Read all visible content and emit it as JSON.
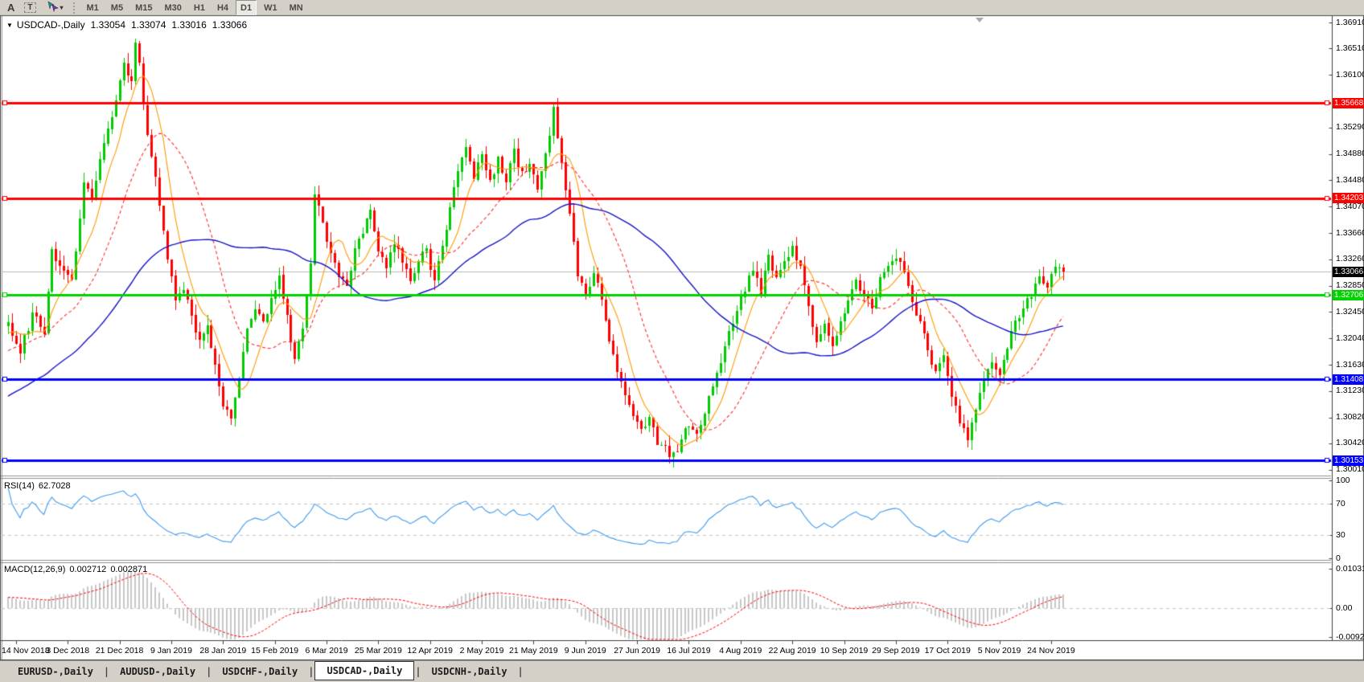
{
  "toolbar": {
    "tool_a": "A",
    "tool_t": "T",
    "timeframes": [
      "M1",
      "M5",
      "M15",
      "M30",
      "H1",
      "H4",
      "D1",
      "W1",
      "MN"
    ],
    "active_timeframe": "D1"
  },
  "chart": {
    "symbol_label": "USDCAD-,Daily",
    "ohlc": {
      "open": "1.33054",
      "high": "1.33074",
      "low": "1.33016",
      "close": "1.33066"
    }
  },
  "price_axis": {
    "tick_labels": [
      "1.36910",
      "1.36510",
      "1.36100",
      "1.35290",
      "1.34880",
      "1.34480",
      "1.34070",
      "1.33660",
      "1.33260",
      "1.32850",
      "1.32450",
      "1.32040",
      "1.31630",
      "1.31230",
      "1.30820",
      "1.30420",
      "1.30010"
    ]
  },
  "axis_badges": [
    {
      "text": "1.35668",
      "price": 1.35668,
      "bg": "#ff0000",
      "fg": "#ffffff"
    },
    {
      "text": "1.34203",
      "price": 1.34203,
      "bg": "#ff0000",
      "fg": "#ffffff"
    },
    {
      "text": "1.33066",
      "price": 1.33066,
      "bg": "#000000",
      "fg": "#ffffff"
    },
    {
      "text": "1.32706",
      "price": 1.32706,
      "bg": "#00d300",
      "fg": "#ffffff"
    },
    {
      "text": "1.31408",
      "price": 1.31408,
      "bg": "#0000ff",
      "fg": "#ffffff"
    },
    {
      "text": "1.30153",
      "price": 1.30153,
      "bg": "#0000ff",
      "fg": "#ffffff"
    }
  ],
  "rsi_panel": {
    "label": "RSI(14)",
    "value": "62.7028",
    "axis_labels": [
      "100",
      "70",
      "30",
      "0"
    ]
  },
  "macd_panel": {
    "label": "MACD(12,26,9)",
    "value_macd": "0.002712",
    "value_signal": "0.002871",
    "axis_labels": [
      "0.010311",
      "0.00",
      "-0.00920"
    ]
  },
  "date_axis": [
    "14 Nov 2018",
    "3 Dec 2018",
    "21 Dec 2018",
    "9 Jan 2019",
    "28 Jan 2019",
    "15 Feb 2019",
    "6 Mar 2019",
    "25 Mar 2019",
    "12 Apr 2019",
    "2 May 2019",
    "21 May 2019",
    "9 Jun 2019",
    "27 Jun 2019",
    "16 Jul 2019",
    "4 Aug 2019",
    "22 Aug 2019",
    "10 Sep 2019",
    "29 Sep 2019",
    "17 Oct 2019",
    "5 Nov 2019",
    "24 Nov 2019"
  ],
  "tabs": {
    "items": [
      "EURUSD-,Daily",
      "AUDUSD-,Daily",
      "USDCHF-,Daily",
      "USDCAD-,Daily",
      "USDCNH-,Daily"
    ],
    "active": "USDCAD-,Daily"
  },
  "chart_data": {
    "type": "candlestick",
    "symbol": "USDCAD",
    "timeframe": "Daily",
    "last_ohlc": {
      "open": 1.33054,
      "high": 1.33074,
      "low": 1.33016,
      "close": 1.33066
    },
    "bars_total": 266,
    "x_tick_dates": [
      "14 Nov 2018",
      "3 Dec 2018",
      "21 Dec 2018",
      "9 Jan 2019",
      "28 Jan 2019",
      "15 Feb 2019",
      "6 Mar 2019",
      "25 Mar 2019",
      "12 Apr 2019",
      "2 May 2019",
      "21 May 2019",
      "9 Jun 2019",
      "27 Jun 2019",
      "16 Jul 2019",
      "4 Aug 2019",
      "22 Aug 2019",
      "10 Sep 2019",
      "29 Sep 2019",
      "17 Oct 2019",
      "5 Nov 2019",
      "24 Nov 2019"
    ],
    "x_tick_first_bar": 2,
    "x_tick_bar_step": 13,
    "y_axis_ticks": [
      1.3691,
      1.3651,
      1.361,
      1.3529,
      1.3488,
      1.3448,
      1.3407,
      1.3366,
      1.3326,
      1.3285,
      1.3245,
      1.3204,
      1.3163,
      1.3123,
      1.3082,
      1.3042,
      1.3001
    ],
    "close_waypoints": [
      [
        0,
        1.3225
      ],
      [
        3,
        1.3185
      ],
      [
        6,
        1.324
      ],
      [
        9,
        1.3215
      ],
      [
        11,
        1.334
      ],
      [
        14,
        1.331
      ],
      [
        16,
        1.329
      ],
      [
        19,
        1.3445
      ],
      [
        21,
        1.3415
      ],
      [
        24,
        1.3505
      ],
      [
        27,
        1.357
      ],
      [
        29,
        1.3625
      ],
      [
        31,
        1.36
      ],
      [
        32,
        1.3655
      ],
      [
        33,
        1.363
      ],
      [
        34,
        1.356
      ],
      [
        36,
        1.3485
      ],
      [
        38,
        1.341
      ],
      [
        40,
        1.333
      ],
      [
        42,
        1.326
      ],
      [
        44,
        1.328
      ],
      [
        46,
        1.324
      ],
      [
        48,
        1.3195
      ],
      [
        50,
        1.3225
      ],
      [
        52,
        1.316
      ],
      [
        54,
        1.31
      ],
      [
        56,
        1.308
      ],
      [
        58,
        1.314
      ],
      [
        60,
        1.322
      ],
      [
        62,
        1.325
      ],
      [
        64,
        1.3225
      ],
      [
        66,
        1.3265
      ],
      [
        68,
        1.33
      ],
      [
        70,
        1.3235
      ],
      [
        72,
        1.317
      ],
      [
        74,
        1.322
      ],
      [
        76,
        1.332
      ],
      [
        77,
        1.343
      ],
      [
        79,
        1.338
      ],
      [
        81,
        1.3335
      ],
      [
        83,
        1.33
      ],
      [
        85,
        1.329
      ],
      [
        87,
        1.334
      ],
      [
        89,
        1.337
      ],
      [
        91,
        1.3405
      ],
      [
        93,
        1.334
      ],
      [
        95,
        1.331
      ],
      [
        97,
        1.3355
      ],
      [
        99,
        1.332
      ],
      [
        101,
        1.329
      ],
      [
        103,
        1.3325
      ],
      [
        105,
        1.334
      ],
      [
        107,
        1.329
      ],
      [
        109,
        1.3345
      ],
      [
        111,
        1.3405
      ],
      [
        113,
        1.3465
      ],
      [
        115,
        1.35
      ],
      [
        117,
        1.3455
      ],
      [
        119,
        1.3485
      ],
      [
        121,
        1.3445
      ],
      [
        123,
        1.348
      ],
      [
        125,
        1.3445
      ],
      [
        127,
        1.349
      ],
      [
        129,
        1.3455
      ],
      [
        131,
        1.3475
      ],
      [
        133,
        1.3435
      ],
      [
        135,
        1.3485
      ],
      [
        137,
        1.3555
      ],
      [
        139,
        1.348
      ],
      [
        141,
        1.3395
      ],
      [
        143,
        1.33
      ],
      [
        145,
        1.327
      ],
      [
        147,
        1.3305
      ],
      [
        149,
        1.3265
      ],
      [
        151,
        1.3205
      ],
      [
        153,
        1.3155
      ],
      [
        155,
        1.3115
      ],
      [
        157,
        1.309
      ],
      [
        159,
        1.3062
      ],
      [
        161,
        1.3082
      ],
      [
        163,
        1.3045
      ],
      [
        165,
        1.3032
      ],
      [
        167,
        1.3022
      ],
      [
        169,
        1.3048
      ],
      [
        171,
        1.3072
      ],
      [
        173,
        1.3058
      ],
      [
        175,
        1.3092
      ],
      [
        177,
        1.3132
      ],
      [
        179,
        1.3172
      ],
      [
        181,
        1.3212
      ],
      [
        183,
        1.3242
      ],
      [
        185,
        1.3282
      ],
      [
        187,
        1.3312
      ],
      [
        189,
        1.3272
      ],
      [
        191,
        1.3332
      ],
      [
        193,
        1.3292
      ],
      [
        195,
        1.3322
      ],
      [
        197,
        1.3342
      ],
      [
        199,
        1.3312
      ],
      [
        201,
        1.3252
      ],
      [
        203,
        1.3198
      ],
      [
        205,
        1.3225
      ],
      [
        207,
        1.3192
      ],
      [
        209,
        1.3235
      ],
      [
        211,
        1.3262
      ],
      [
        213,
        1.3295
      ],
      [
        215,
        1.3272
      ],
      [
        217,
        1.325
      ],
      [
        219,
        1.3292
      ],
      [
        221,
        1.3315
      ],
      [
        223,
        1.3332
      ],
      [
        225,
        1.3305
      ],
      [
        227,
        1.3262
      ],
      [
        229,
        1.3228
      ],
      [
        231,
        1.3185
      ],
      [
        233,
        1.3148
      ],
      [
        235,
        1.3172
      ],
      [
        237,
        1.3118
      ],
      [
        239,
        1.3078
      ],
      [
        241,
        1.3048
      ],
      [
        243,
        1.3095
      ],
      [
        245,
        1.3142
      ],
      [
        247,
        1.3168
      ],
      [
        249,
        1.3148
      ],
      [
        251,
        1.3192
      ],
      [
        253,
        1.3228
      ],
      [
        255,
        1.3248
      ],
      [
        257,
        1.3272
      ],
      [
        259,
        1.3302
      ],
      [
        261,
        1.3282
      ],
      [
        263,
        1.3312
      ],
      [
        265,
        1.33066
      ]
    ],
    "horizontal_lines": [
      {
        "price": 1.35668,
        "color": "#ff0000"
      },
      {
        "price": 1.34203,
        "color": "#ff0000"
      },
      {
        "price": 1.32706,
        "color": "#00d300"
      },
      {
        "price": 1.31408,
        "color": "#0000ff"
      },
      {
        "price": 1.30153,
        "color": "#0000ff"
      }
    ],
    "current_price": 1.33066,
    "bull_color": "#00cc00",
    "bear_color": "#ff0000",
    "moving_averages": [
      {
        "period": 8,
        "color": "#ff9900",
        "dash": []
      },
      {
        "period": 21,
        "color": "#ff2a2a",
        "dash": [
          4,
          3
        ]
      },
      {
        "period": 55,
        "color": "#1515c8",
        "dash": []
      }
    ],
    "rsi": {
      "period": 14,
      "last_value": 62.7028,
      "levels": [
        70,
        30
      ],
      "range": [
        0,
        100
      ],
      "color": "#3f9bef"
    },
    "macd": {
      "fast": 12,
      "slow": 26,
      "signal_period": 9,
      "last_macd": 0.002712,
      "last_signal": 0.002871,
      "axis_max": 0.010311,
      "axis_min": -0.0092,
      "histogram_color": "#c8c8c8",
      "signal_color": "#ff0000"
    }
  }
}
